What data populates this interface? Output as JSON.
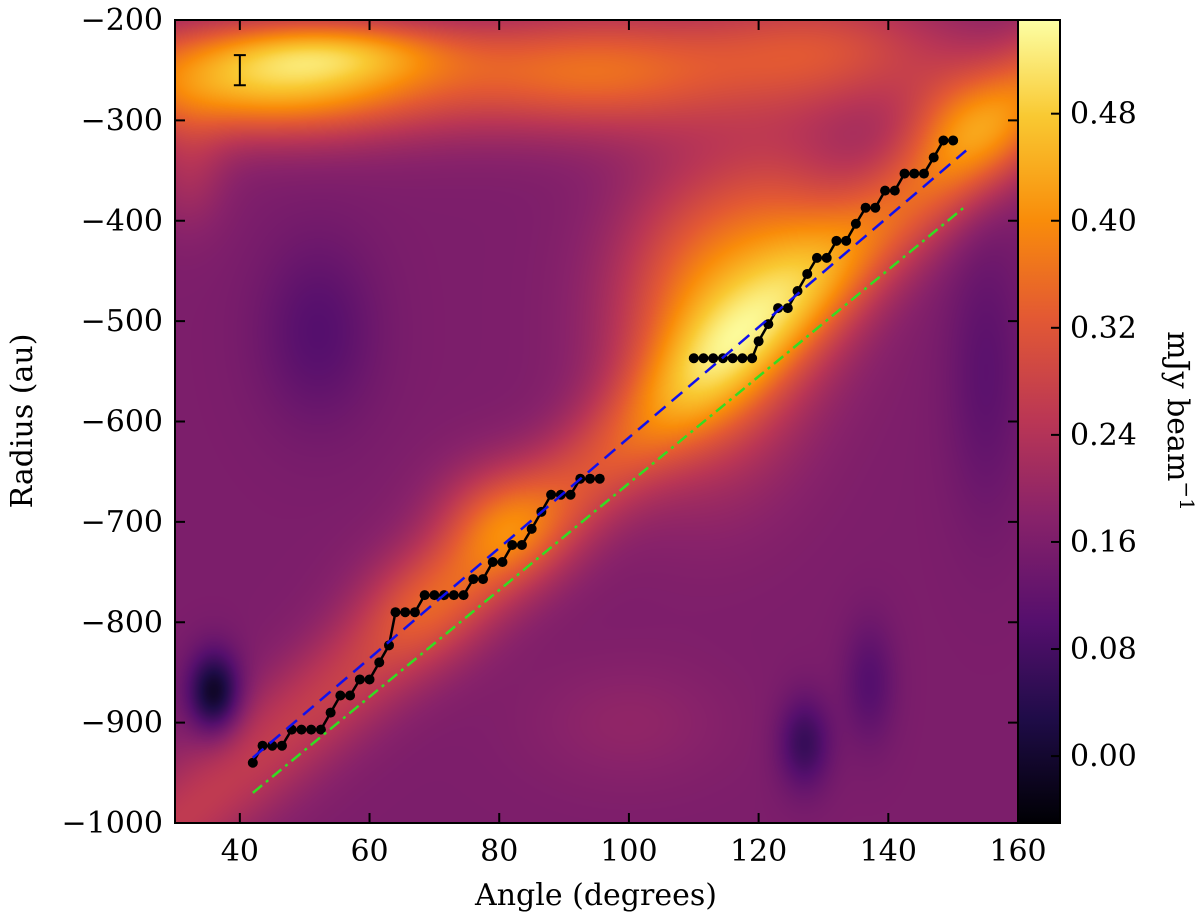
{
  "chart_data": {
    "type": "heatmap",
    "xlabel": "Angle (degrees)",
    "ylabel": "Radius (au)",
    "xlim": [
      30,
      160
    ],
    "ylim": [
      -1000,
      -200
    ],
    "xticks": [
      40,
      60,
      80,
      100,
      120,
      140,
      160
    ],
    "yticks": [
      -1000,
      -900,
      -800,
      -700,
      -600,
      -500,
      -400,
      -300,
      -200
    ],
    "xtick_labels": [
      "40",
      "60",
      "80",
      "100",
      "120",
      "140",
      "160"
    ],
    "ytick_labels": [
      "−1000",
      "−900",
      "−800",
      "−700",
      "−600",
      "−500",
      "−400",
      "−300",
      "−200"
    ],
    "colorbar": {
      "label": "mJy beam",
      "label_superscript": "−1",
      "range": [
        -0.05,
        0.55
      ],
      "ticks": [
        0.0,
        0.08,
        0.16,
        0.24,
        0.32,
        0.4,
        0.48
      ],
      "tick_labels": [
        "0.00",
        "0.08",
        "0.16",
        "0.24",
        "0.32",
        "0.40",
        "0.48"
      ],
      "colormap": "inferno"
    },
    "beam_marker": {
      "x": 40,
      "y": -250,
      "half_height": 15
    },
    "intensity_blobs": [
      {
        "x": 45,
        "y": -260,
        "sx": 28,
        "sy": 55,
        "a": 0.3
      },
      {
        "x": 55,
        "y": -230,
        "sx": 18,
        "sy": 30,
        "a": 0.12
      },
      {
        "x": 112,
        "y": -500,
        "sx": 14,
        "sy": 140,
        "a": 0.22
      },
      {
        "x": 125,
        "y": -420,
        "sx": 12,
        "sy": 110,
        "a": 0.12
      },
      {
        "x": 80,
        "y": -700,
        "sx": 10,
        "sy": 60,
        "a": 0.12
      },
      {
        "x": 68,
        "y": -780,
        "sx": 10,
        "sy": 60,
        "a": 0.06
      },
      {
        "x": 95,
        "y": -250,
        "sx": 22,
        "sy": 60,
        "a": 0.18
      },
      {
        "x": 130,
        "y": -230,
        "sx": 20,
        "sy": 60,
        "a": 0.14
      },
      {
        "x": 152,
        "y": -300,
        "sx": 10,
        "sy": 60,
        "a": 0.1
      },
      {
        "x": 32,
        "y": -350,
        "sx": 6,
        "sy": 60,
        "a": 0.06
      },
      {
        "x": 36,
        "y": -870,
        "sx": 4,
        "sy": 40,
        "a": -0.18
      },
      {
        "x": 52,
        "y": -510,
        "sx": 9,
        "sy": 90,
        "a": -0.06
      },
      {
        "x": 127,
        "y": -920,
        "sx": 4,
        "sy": 45,
        "a": -0.1
      },
      {
        "x": 137,
        "y": -860,
        "sx": 4,
        "sy": 60,
        "a": -0.06
      },
      {
        "x": 155,
        "y": -550,
        "sx": 6,
        "sy": 140,
        "a": -0.05
      },
      {
        "x": 100,
        "y": -900,
        "sx": 15,
        "sy": 60,
        "a": 0.03
      }
    ],
    "series": [
      {
        "style": "black-line-markers",
        "color": "#000000",
        "points": [
          [
            42,
            -940
          ],
          [
            43.5,
            -923
          ],
          [
            45,
            -923
          ],
          [
            46.5,
            -923
          ],
          [
            48,
            -907
          ],
          [
            49.5,
            -907
          ],
          [
            51,
            -907
          ],
          [
            52.5,
            -907
          ],
          [
            54,
            -890
          ],
          [
            55.5,
            -873
          ],
          [
            57,
            -873
          ],
          [
            58.5,
            -857
          ],
          [
            60,
            -857
          ],
          [
            61.5,
            -840
          ],
          [
            63,
            -823
          ],
          [
            64,
            -790
          ],
          [
            65.5,
            -790
          ],
          [
            67,
            -790
          ],
          [
            68.5,
            -773
          ],
          [
            70,
            -773
          ],
          [
            71.5,
            -773
          ],
          [
            73,
            -773
          ],
          [
            74.5,
            -773
          ],
          [
            76,
            -757
          ],
          [
            77.5,
            -757
          ],
          [
            79,
            -740
          ],
          [
            80.5,
            -740
          ],
          [
            82,
            -723
          ],
          [
            83.5,
            -723
          ],
          [
            85,
            -707
          ],
          [
            86.5,
            -690
          ],
          [
            88,
            -673
          ],
          [
            89.5,
            -673
          ],
          [
            91,
            -673
          ],
          [
            92.5,
            -657
          ],
          [
            94,
            -657
          ],
          [
            95.5,
            -657
          ]
        ]
      },
      {
        "style": "black-line-markers",
        "color": "#000000",
        "points": [
          [
            110,
            -537
          ],
          [
            111.5,
            -537
          ],
          [
            113,
            -537
          ],
          [
            114.5,
            -537
          ],
          [
            116,
            -537
          ],
          [
            117.5,
            -537
          ],
          [
            119,
            -537
          ],
          [
            120,
            -520
          ],
          [
            121.5,
            -503
          ],
          [
            123,
            -487
          ],
          [
            124.5,
            -487
          ],
          [
            126,
            -470
          ],
          [
            127.5,
            -453
          ],
          [
            129,
            -437
          ],
          [
            130.5,
            -437
          ],
          [
            132,
            -420
          ],
          [
            133.5,
            -420
          ],
          [
            135,
            -403
          ],
          [
            136.5,
            -387
          ],
          [
            138,
            -387
          ],
          [
            139.5,
            -370
          ],
          [
            141,
            -370
          ],
          [
            142.5,
            -353
          ],
          [
            144,
            -353
          ],
          [
            145.5,
            -353
          ],
          [
            147,
            -337
          ],
          [
            148.5,
            -320
          ],
          [
            150,
            -320
          ]
        ]
      },
      {
        "style": "blue-dashed",
        "color": "#1010ee",
        "points": [
          [
            42,
            -935
          ],
          [
            152,
            -330
          ]
        ]
      },
      {
        "style": "green-dashdot",
        "color": "#33dd22",
        "points": [
          [
            42,
            -970
          ],
          [
            152,
            -385
          ]
        ]
      }
    ]
  }
}
